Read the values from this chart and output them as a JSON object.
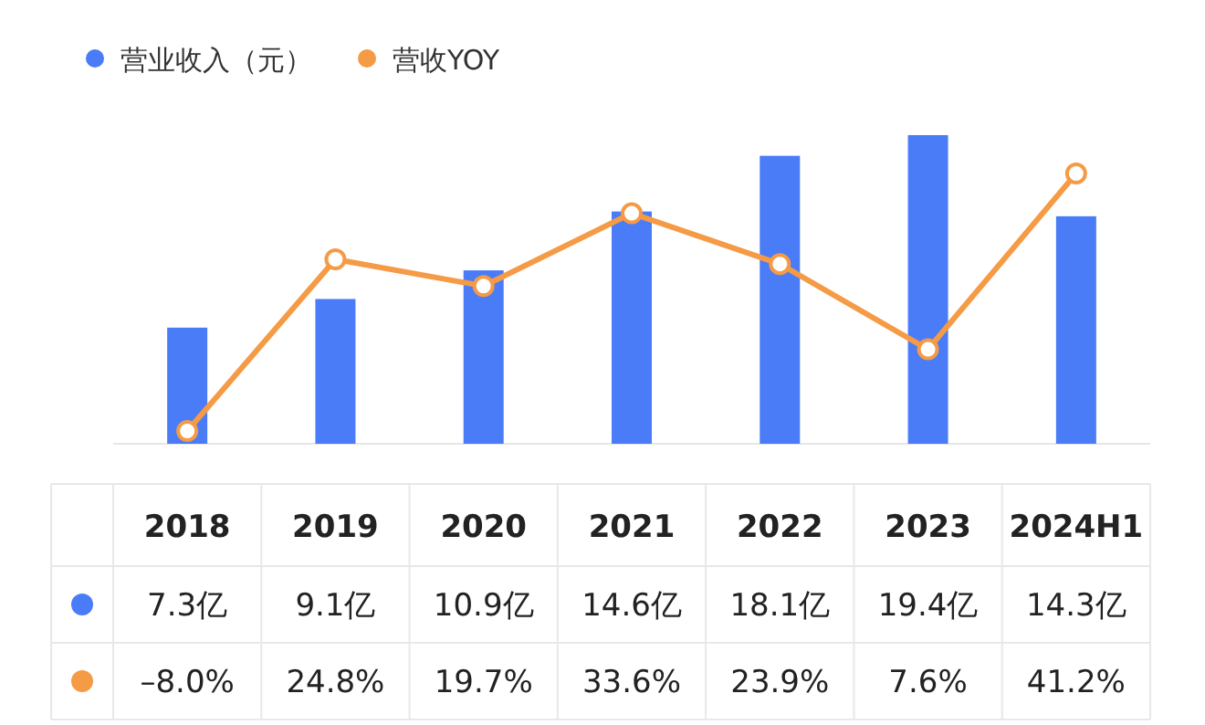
{
  "chart_data": {
    "type": "bar",
    "legend": "top left",
    "categories": [
      "2018",
      "2019",
      "2020",
      "2021",
      "2022",
      "2023",
      "2024H1"
    ],
    "series": [
      {
        "name": "营业收入（元）",
        "color": "#4a7cf7",
        "values": [
          7.3,
          9.1,
          10.9,
          14.6,
          18.1,
          19.4,
          14.3
        ],
        "value_labels": [
          "7.3亿",
          "9.1亿",
          "10.9亿",
          "14.6亿",
          "18.1亿",
          "19.4亿",
          "14.3亿"
        ]
      },
      {
        "name": "营收YOY",
        "type": "line",
        "axis": "y2",
        "color": "#f59a45",
        "marker": "circle",
        "values": [
          -8.0,
          24.8,
          19.7,
          33.6,
          23.9,
          7.6,
          41.2
        ],
        "value_labels": [
          "–8.0%",
          "24.8%",
          "19.7%",
          "33.6%",
          "23.9%",
          "7.6%",
          "41.2%"
        ]
      }
    ]
  }
}
